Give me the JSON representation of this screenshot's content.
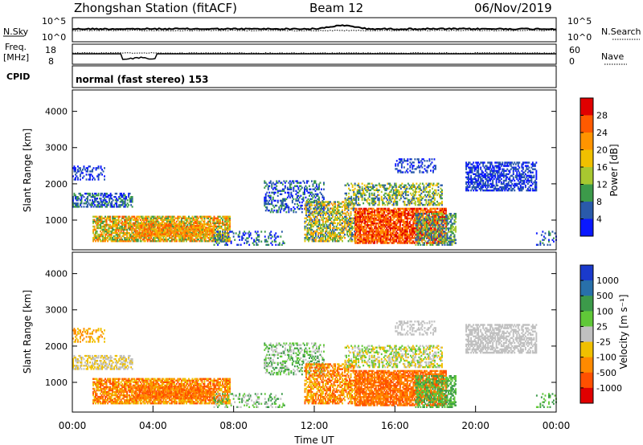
{
  "header": {
    "station": "Zhongshan Station (fitACF)",
    "beam": "Beam 12",
    "date": "06/Nov/2019"
  },
  "noise_panel": {
    "left_label": "N.Sky",
    "right_label": "N.Search",
    "left_ticks": [
      "10^5",
      "10^0"
    ],
    "right_ticks": [
      "10^5",
      "10^0"
    ]
  },
  "freq_panel": {
    "left_label_1": "Freq.",
    "left_label_2": "[MHz]",
    "left_ticks": [
      "18",
      "8"
    ],
    "right_label": "Nave",
    "right_ticks": [
      "60",
      "0"
    ]
  },
  "cpid": {
    "label": "CPID",
    "value": "normal (fast stereo) 153"
  },
  "chart_data": [
    {
      "type": "heatmap",
      "title": "",
      "xlabel": "",
      "ylabel": "Slant Range [km]",
      "xlim": [
        0,
        24
      ],
      "ylim": [
        180,
        4590
      ],
      "y_ticks": [
        "4000",
        "3000",
        "2000",
        "1000"
      ],
      "colorbar": {
        "label": "Power [dB]",
        "ticks": [
          "28",
          "24",
          "20",
          "16",
          "12",
          "8",
          "4"
        ],
        "colors": [
          "#e00000",
          "#ff5a00",
          "#ff9400",
          "#f0c000",
          "#a8c830",
          "#3c9a4a",
          "#2a5aaa",
          "#0a18ff"
        ]
      }
    },
    {
      "type": "heatmap",
      "title": "",
      "xlabel": "Time UT",
      "ylabel": "Slant Range [km]",
      "xlim": [
        0,
        24
      ],
      "ylim": [
        180,
        4590
      ],
      "x_ticks": [
        "00:00",
        "04:00",
        "08:00",
        "12:00",
        "16:00",
        "20:00",
        "00:00"
      ],
      "y_ticks": [
        "4000",
        "3000",
        "2000",
        "1000"
      ],
      "colorbar": {
        "label": "Velocity [m s⁻¹]",
        "ticks": [
          "1000",
          "500",
          "100",
          "25",
          "-25",
          "-100",
          "-500",
          "-1000"
        ],
        "colors": [
          "#1a3acc",
          "#2870aa",
          "#3c9a4a",
          "#60c838",
          "#c0c0c0",
          "#f0c000",
          "#ff8a00",
          "#ff5000",
          "#e00000"
        ]
      }
    }
  ]
}
